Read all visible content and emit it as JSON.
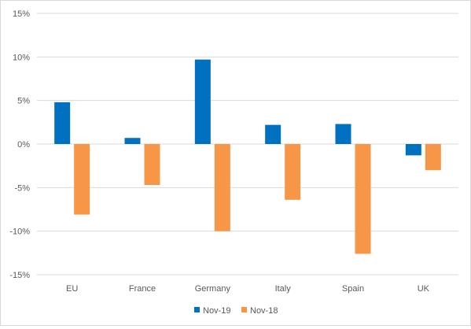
{
  "chart_data": {
    "type": "bar",
    "title": "",
    "xlabel": "",
    "ylabel": "",
    "categories": [
      "EU",
      "France",
      "Germany",
      "Italy",
      "Spain",
      "UK"
    ],
    "series": [
      {
        "name": "Nov-19",
        "color": "#0070c0",
        "values": [
          4.8,
          0.7,
          9.7,
          2.2,
          2.3,
          -1.3
        ]
      },
      {
        "name": "Nov-18",
        "color": "#f79646",
        "values": [
          -8.1,
          -4.7,
          -10.0,
          -6.4,
          -12.6,
          -3.0
        ]
      }
    ],
    "ylim": [
      -15,
      15
    ],
    "yticks": [
      15,
      10,
      5,
      0,
      -5,
      -10,
      -15
    ],
    "ytick_labels": [
      "15%",
      "10%",
      "5%",
      "0%",
      "-5%",
      "-10%",
      "-15%"
    ],
    "grid": true,
    "legend_position": "bottom"
  }
}
